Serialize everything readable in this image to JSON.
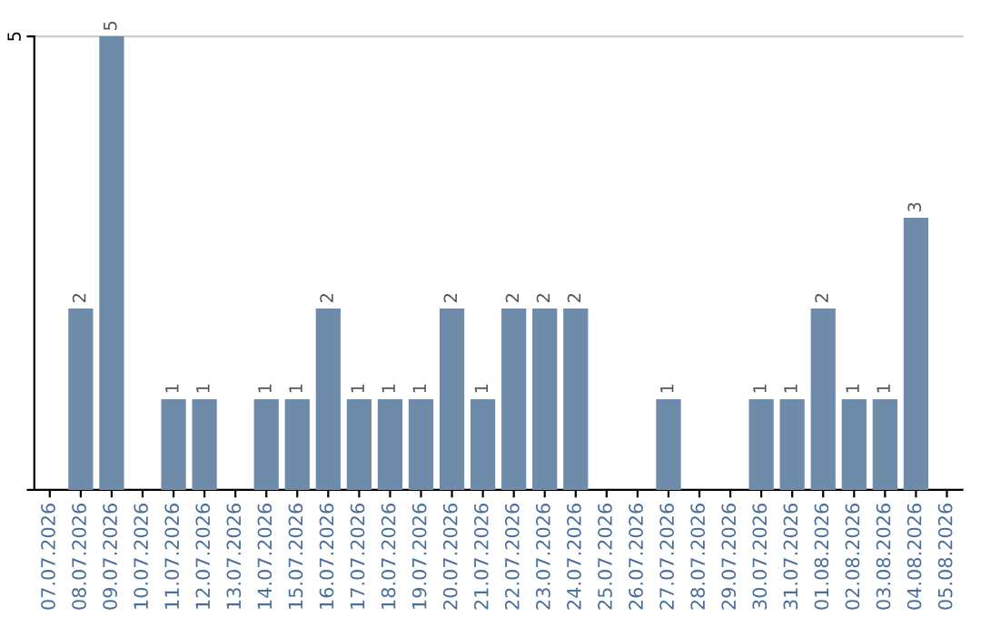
{
  "chart_data": {
    "type": "bar",
    "categories": [
      "07.07.2026",
      "08.07.2026",
      "09.07.2026",
      "10.07.2026",
      "11.07.2026",
      "12.07.2026",
      "13.07.2026",
      "14.07.2026",
      "15.07.2026",
      "16.07.2026",
      "17.07.2026",
      "18.07.2026",
      "19.07.2026",
      "20.07.2026",
      "21.07.2026",
      "22.07.2026",
      "23.07.2026",
      "24.07.2026",
      "25.07.2026",
      "26.07.2026",
      "27.07.2026",
      "28.07.2026",
      "29.07.2026",
      "30.07.2026",
      "31.07.2026",
      "01.08.2026",
      "02.08.2026",
      "03.08.2026",
      "04.08.2026",
      "05.08.2026"
    ],
    "values": [
      0,
      2,
      5,
      0,
      1,
      1,
      0,
      1,
      1,
      2,
      1,
      1,
      1,
      2,
      1,
      2,
      2,
      2,
      0,
      0,
      1,
      0,
      0,
      1,
      1,
      2,
      1,
      1,
      3,
      0
    ],
    "value_labels": [
      null,
      "2",
      "5",
      null,
      "1",
      "1",
      null,
      "1",
      "1",
      "2",
      "1",
      "1",
      "1",
      "2",
      "1",
      "2",
      "2",
      "2",
      null,
      null,
      "1",
      null,
      null,
      "1",
      "1",
      "2",
      "1",
      "1",
      "3",
      null
    ],
    "color": "#6e8caa",
    "ylim": [
      0,
      5
    ],
    "yticks": [
      {
        "value": 0,
        "label": null
      },
      5
    ],
    "grid": "y",
    "legend": false
  }
}
